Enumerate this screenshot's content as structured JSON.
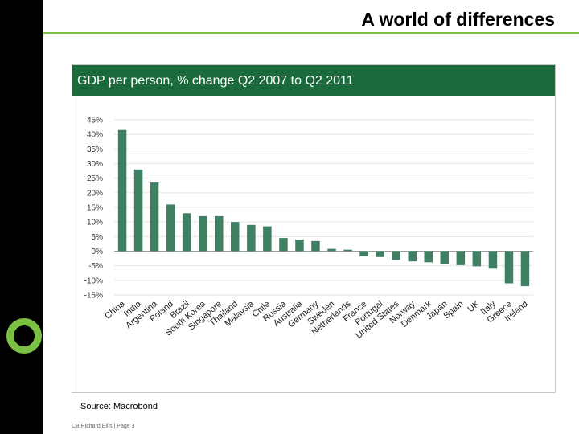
{
  "slide": {
    "title": "A world of differences",
    "source": "Source: Macrobond",
    "footer": "CB Richard Ellis | Page 3"
  },
  "colors": {
    "bar": "#3f7f63",
    "header": "#1b6a3c",
    "accent": "#7ac143"
  },
  "chart_data": {
    "type": "bar",
    "title": "GDP per person,  % change Q2 2007 to Q2 2011",
    "xlabel": "",
    "ylabel": "",
    "ylim": [
      -15,
      45
    ],
    "yticks": [
      45,
      40,
      35,
      30,
      25,
      20,
      15,
      10,
      5,
      0,
      -5,
      -10,
      -15
    ],
    "ytick_labels": [
      "45%",
      "40%",
      "35%",
      "30%",
      "25%",
      "20%",
      "15%",
      "10%",
      "5%",
      "0%",
      "-5%",
      "-10%",
      "-15%"
    ],
    "grid": true,
    "categories": [
      "China",
      "India",
      "Argentina",
      "Poland",
      "Brazil",
      "South Korea",
      "Singapore",
      "Thailand",
      "Malaysia",
      "Chile",
      "Russia",
      "Australia",
      "Germany",
      "Sweden",
      "Netherlands",
      "France",
      "Portugal",
      "United States",
      "Norway",
      "Denmark",
      "Japan",
      "Spain",
      "UK",
      "Italy",
      "Greece",
      "Ireland"
    ],
    "values": [
      41.5,
      28,
      23.5,
      16,
      13,
      12,
      12,
      10,
      9,
      8.5,
      4.5,
      4,
      3.5,
      0.8,
      0.5,
      -1.8,
      -2,
      -3,
      -3.5,
      -3.8,
      -4.3,
      -4.8,
      -5.2,
      -6,
      -11,
      -12
    ]
  }
}
